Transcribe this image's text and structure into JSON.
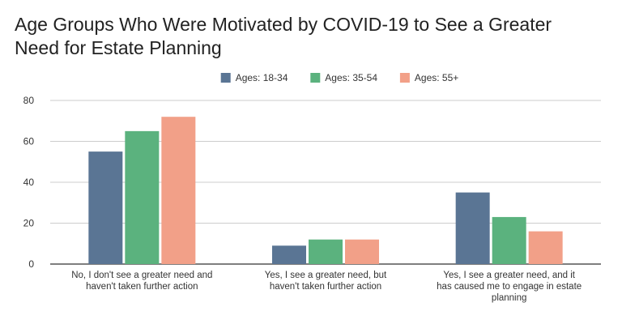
{
  "chart_data": {
    "type": "bar",
    "title_lines": [
      "Age Groups Who Were Motivated by COVID-19 to See a Greater",
      "Need for Estate Planning"
    ],
    "categories": [
      [
        "No, I don't see a greater need and",
        "haven't taken further action"
      ],
      [
        "Yes, I see a greater need, but",
        "haven't taken further action"
      ],
      [
        "Yes, I see a greater need, and it",
        "has caused me to engage in estate",
        "planning"
      ]
    ],
    "series": [
      {
        "name": "Ages: 18-34",
        "color": "#5a7594",
        "values": [
          55,
          9,
          35
        ]
      },
      {
        "name": "Ages: 35-54",
        "color": "#5bb27e",
        "values": [
          65,
          12,
          23
        ]
      },
      {
        "name": "Ages: 55+",
        "color": "#f2a088",
        "values": [
          72,
          12,
          16
        ]
      }
    ],
    "yticks": [
      0,
      20,
      40,
      60,
      80
    ],
    "ylim": [
      0,
      80
    ],
    "grid": true,
    "legend_position": "top"
  }
}
